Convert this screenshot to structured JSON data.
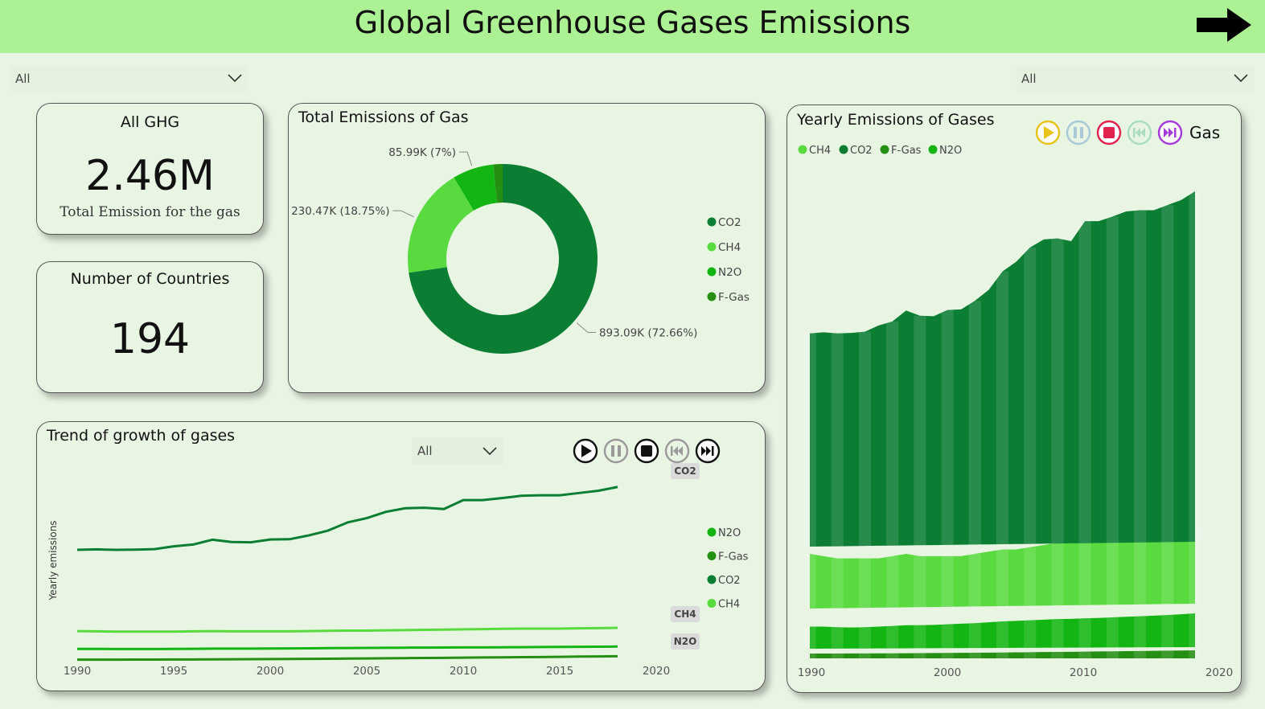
{
  "header": {
    "title": "Global Greenhouse Gases Emissions"
  },
  "slicers": {
    "left": "All",
    "right": "All",
    "trend": "All"
  },
  "kpi": {
    "total": {
      "label": "All GHG",
      "value": "2.46M",
      "sublabel": "Total Emission for the gas"
    },
    "countries": {
      "label": "Number of Countries",
      "value": "194"
    }
  },
  "colors": {
    "CO2": "#0b7e34",
    "CH4": "#59db3f",
    "N2O": "#12b512",
    "F-Gas": "#248f12"
  },
  "chart_data": [
    {
      "type": "pie",
      "title": "Total Emissions of Gas",
      "slices": [
        {
          "name": "CO2",
          "value": 893090,
          "label": "893.09K (72.66%)"
        },
        {
          "name": "CH4",
          "value": 230470,
          "label": "230.47K (18.75%)"
        },
        {
          "name": "N2O",
          "value": 85990,
          "label": "85.99K (7%)"
        },
        {
          "name": "F-Gas",
          "value": 19500,
          "label": ""
        }
      ],
      "legend": [
        "CO2",
        "CH4",
        "N2O",
        "F-Gas"
      ],
      "legend_position": "right"
    },
    {
      "type": "line",
      "title": "Trend of growth of gases",
      "ylabel": "Yearly emissions",
      "xlim": [
        1990,
        2020
      ],
      "ylim": [
        0,
        38000
      ],
      "xticks": [
        "1990",
        "1995",
        "2000",
        "2005",
        "2010",
        "2015",
        "2020"
      ],
      "x": [
        1990,
        1991,
        1992,
        1993,
        1994,
        1995,
        1996,
        1997,
        1998,
        1999,
        2000,
        2001,
        2002,
        2003,
        2004,
        2005,
        2006,
        2007,
        2008,
        2009,
        2010,
        2011,
        2012,
        2013,
        2014,
        2015,
        2016,
        2017,
        2018
      ],
      "series": [
        {
          "name": "CO2",
          "values": [
            22000,
            22100,
            22000,
            22050,
            22150,
            22700,
            23050,
            24000,
            23550,
            23500,
            24050,
            24100,
            24850,
            25800,
            27400,
            28250,
            29500,
            30200,
            30300,
            30050,
            31800,
            31800,
            32200,
            32650,
            32750,
            32750,
            33200,
            33650,
            34400
          ]
        },
        {
          "name": "CH4",
          "values": [
            6000,
            5950,
            5900,
            5900,
            5900,
            5900,
            5950,
            6000,
            5950,
            5950,
            5950,
            5950,
            6000,
            6050,
            6100,
            6100,
            6150,
            6200,
            6250,
            6300,
            6350,
            6400,
            6450,
            6500,
            6500,
            6500,
            6550,
            6600,
            6650
          ]
        },
        {
          "name": "N2O",
          "values": [
            2500,
            2500,
            2480,
            2470,
            2480,
            2500,
            2520,
            2550,
            2550,
            2560,
            2580,
            2600,
            2620,
            2650,
            2680,
            2700,
            2720,
            2740,
            2760,
            2770,
            2790,
            2800,
            2820,
            2840,
            2860,
            2880,
            2900,
            2930,
            2960
          ]
        },
        {
          "name": "F-Gas",
          "values": [
            370,
            370,
            380,
            390,
            400,
            410,
            420,
            440,
            460,
            480,
            490,
            510,
            530,
            560,
            590,
            620,
            650,
            680,
            710,
            740,
            780,
            810,
            840,
            870,
            900,
            940,
            980,
            1010,
            1050
          ]
        }
      ],
      "end_labels": [
        "CO2",
        "CH4",
        "N2O"
      ],
      "legend": [
        "N2O",
        "F-Gas",
        "CO2",
        "CH4"
      ],
      "legend_position": "right"
    },
    {
      "type": "area",
      "title": "Yearly Emissions of Gases",
      "legend": [
        "CH4",
        "CO2",
        "F-Gas",
        "N2O"
      ],
      "legend_position": "top-left",
      "xticks": [
        "1990",
        "2000",
        "2010",
        "2020"
      ],
      "x": [
        1990,
        1991,
        1992,
        1993,
        1994,
        1995,
        1996,
        1997,
        1998,
        1999,
        2000,
        2001,
        2002,
        2003,
        2004,
        2005,
        2006,
        2007,
        2008,
        2009,
        2010,
        2011,
        2012,
        2013,
        2014,
        2015,
        2016,
        2017,
        2018
      ],
      "stack_order": [
        "F-Gas",
        "N2O",
        "CH4",
        "CO2"
      ],
      "series": [
        {
          "name": "CO2",
          "values": [
            22000,
            22100,
            22000,
            22050,
            22150,
            22700,
            23050,
            24000,
            23550,
            23500,
            24050,
            24100,
            24850,
            25800,
            27400,
            28250,
            29500,
            30200,
            30300,
            30050,
            31800,
            31800,
            32200,
            32650,
            32750,
            32750,
            33200,
            33650,
            34400
          ]
        },
        {
          "name": "CH4",
          "values": [
            6000,
            5950,
            5900,
            5900,
            5900,
            5900,
            5950,
            6000,
            5950,
            5950,
            5950,
            5950,
            6000,
            6050,
            6100,
            6100,
            6150,
            6200,
            6250,
            6300,
            6350,
            6400,
            6450,
            6500,
            6500,
            6500,
            6550,
            6600,
            6650
          ]
        },
        {
          "name": "N2O",
          "values": [
            2500,
            2500,
            2480,
            2470,
            2480,
            2500,
            2520,
            2550,
            2550,
            2560,
            2580,
            2600,
            2620,
            2650,
            2680,
            2700,
            2720,
            2740,
            2760,
            2770,
            2790,
            2800,
            2820,
            2840,
            2860,
            2880,
            2900,
            2930,
            2960
          ]
        },
        {
          "name": "F-Gas",
          "values": [
            370,
            370,
            380,
            390,
            400,
            410,
            420,
            440,
            460,
            480,
            490,
            510,
            530,
            560,
            590,
            620,
            650,
            680,
            710,
            740,
            780,
            810,
            840,
            870,
            900,
            940,
            980,
            1010,
            1050
          ]
        }
      ],
      "play_axis_label": "Gas"
    }
  ]
}
